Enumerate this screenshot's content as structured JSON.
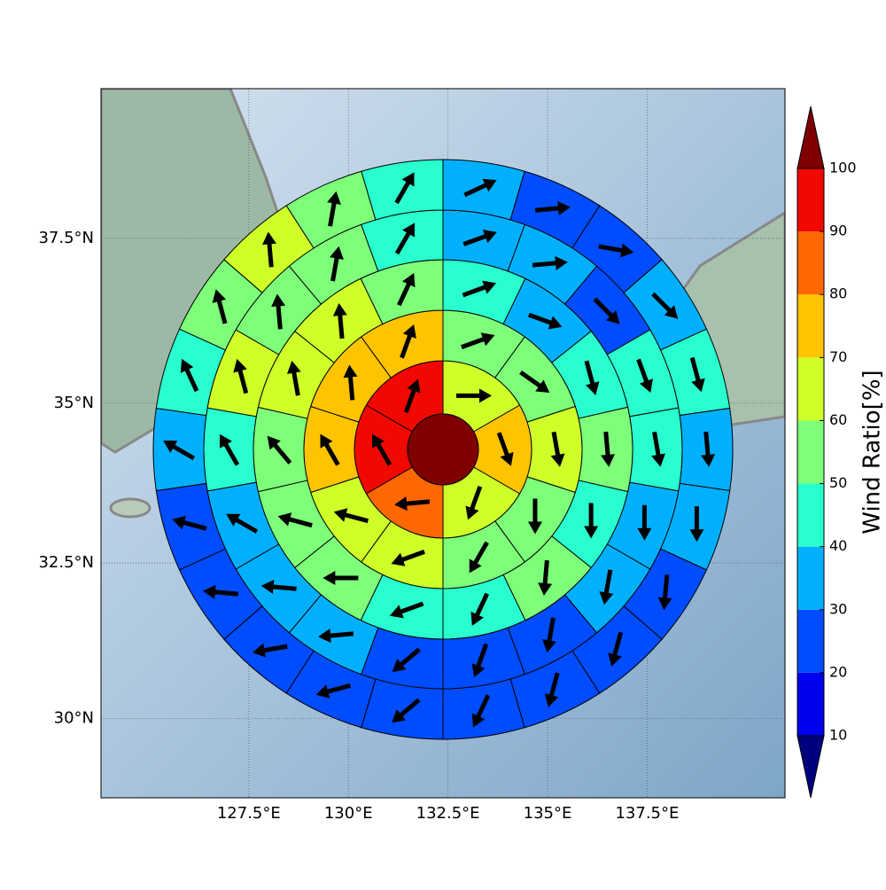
{
  "chart_data": {
    "type": "polar",
    "xlim": [
      123.79,
      140.96
    ],
    "ylim": [
      28.7,
      39.7
    ],
    "xticks": [
      {
        "value": 127.5,
        "label": "127.5°E"
      },
      {
        "value": 130,
        "label": "130°E"
      },
      {
        "value": 132.5,
        "label": "132.5°E"
      },
      {
        "value": 135,
        "label": "135°E"
      },
      {
        "value": 137.5,
        "label": "137.5°E"
      }
    ],
    "yticks": [
      {
        "value": 30,
        "label": "30°N"
      },
      {
        "value": 32.5,
        "label": "32.5°N"
      },
      {
        "value": 35,
        "label": "35°N"
      },
      {
        "value": 37.5,
        "label": "37.5°N"
      }
    ],
    "grid": true,
    "colorbar_label": "Wind Ratio[%]",
    "colorbar_ticks": [
      10,
      20,
      30,
      40,
      50,
      60,
      70,
      80,
      90,
      100
    ],
    "colors": [
      "#00007f",
      "#0000f1",
      "#004cff",
      "#00b0ff",
      "#29ffce",
      "#7dff7a",
      "#ceff29",
      "#ffc400",
      "#ff6800",
      "#f10800",
      "#7f0000"
    ],
    "center": {
      "value": 105
    },
    "rings": [
      {
        "values": [
          65,
          75,
          65,
          85,
          95,
          95
        ],
        "directions": [
          90,
          160,
          200,
          265,
          330,
          20
        ]
      },
      {
        "values": [
          55,
          55,
          65,
          55,
          55,
          65,
          65,
          75,
          75,
          75
        ],
        "directions": [
          70,
          125,
          170,
          180,
          210,
          250,
          285,
          330,
          355,
          20
        ]
      },
      {
        "values": [
          45,
          35,
          45,
          55,
          45,
          55,
          45,
          45,
          55,
          55,
          55,
          65,
          65,
          55
        ],
        "directions": [
          70,
          110,
          165,
          175,
          180,
          185,
          205,
          250,
          270,
          285,
          320,
          350,
          355,
          25
        ]
      },
      {
        "values": [
          35,
          35,
          25,
          45,
          45,
          35,
          35,
          25,
          25,
          25,
          35,
          35,
          35,
          45,
          65,
          55,
          55,
          45
        ],
        "directions": [
          70,
          85,
          135,
          160,
          170,
          180,
          190,
          190,
          200,
          230,
          265,
          275,
          300,
          330,
          345,
          355,
          10,
          30
        ]
      },
      {
        "values": [
          35,
          25,
          25,
          35,
          45,
          35,
          35,
          25,
          25,
          25,
          25,
          25,
          25,
          25,
          25,
          25,
          35,
          45,
          55,
          65,
          55,
          45
        ],
        "directions": [
          65,
          85,
          100,
          135,
          165,
          175,
          180,
          185,
          195,
          195,
          205,
          230,
          255,
          260,
          275,
          285,
          300,
          335,
          345,
          355,
          10,
          30
        ]
      }
    ]
  }
}
